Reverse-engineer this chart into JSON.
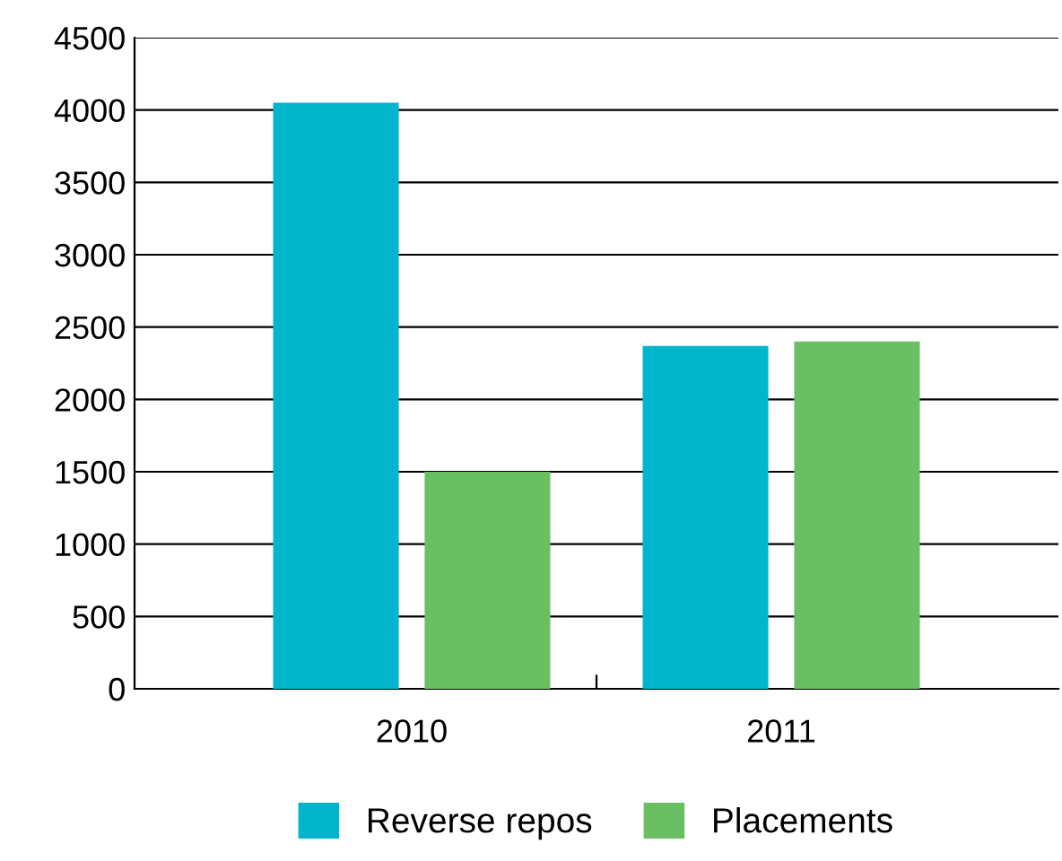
{
  "chart_data": {
    "type": "bar",
    "categories": [
      "2010",
      "2011"
    ],
    "series": [
      {
        "name": "Reverse repos",
        "color": "#00b5cc",
        "values": [
          4050,
          2370
        ]
      },
      {
        "name": "Placements",
        "color": "#6bbf63",
        "values": [
          1500,
          2400
        ]
      }
    ],
    "ylim": [
      0,
      4500
    ],
    "yticks": [
      0,
      500,
      1000,
      1500,
      2000,
      2500,
      3000,
      3500,
      4000,
      4500
    ],
    "grid": "y",
    "legend": "bottom"
  }
}
